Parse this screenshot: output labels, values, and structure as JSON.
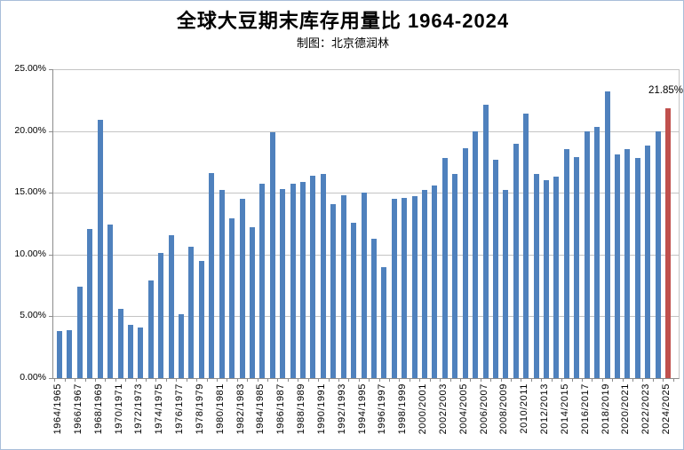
{
  "title": "全球大豆期末库存用量比 1964-2024",
  "subtitle": "制图：北京德润林",
  "chart_data": {
    "type": "bar",
    "title": "全球大豆期末库存用量比 1964-2024",
    "subtitle": "制图：北京德润林",
    "xlabel": "",
    "ylabel": "",
    "ylim": [
      0,
      25
    ],
    "ytick_step": 5,
    "ytick_labels": [
      "0.00%",
      "5.00%",
      "10.00%",
      "15.00%",
      "20.00%",
      "25.00%"
    ],
    "xtick_label_every": 2,
    "grid": true,
    "legend_position": "none",
    "bar_color": "#4f81bd",
    "highlight_color": "#c0504d",
    "highlight_index": 60,
    "annotation": {
      "text": "21.85%",
      "index": 60
    },
    "categories": [
      "1964/1965",
      "1965/1966",
      "1966/1967",
      "1967/1968",
      "1968/1969",
      "1969/1970",
      "1970/1971",
      "1971/1972",
      "1972/1973",
      "1973/1974",
      "1974/1975",
      "1975/1976",
      "1976/1977",
      "1977/1978",
      "1978/1979",
      "1979/1980",
      "1980/1981",
      "1981/1982",
      "1982/1983",
      "1983/1984",
      "1984/1985",
      "1985/1986",
      "1986/1987",
      "1987/1988",
      "1988/1989",
      "1989/1990",
      "1990/1991",
      "1991/1992",
      "1992/1993",
      "1993/1994",
      "1994/1995",
      "1995/1996",
      "1996/1997",
      "1997/1998",
      "1998/1999",
      "1999/2000",
      "2000/2001",
      "2001/2002",
      "2002/2003",
      "2003/2004",
      "2004/2005",
      "2005/2006",
      "2006/2007",
      "2007/2008",
      "2008/2009",
      "2009/2010",
      "2010/2011",
      "2011/2012",
      "2012/2013",
      "2013/2014",
      "2014/2015",
      "2015/2016",
      "2016/2017",
      "2017/2018",
      "2018/2019",
      "2019/2020",
      "2020/2021",
      "2021/2022",
      "2022/2023",
      "2023/2024",
      "2024/2025"
    ],
    "values": [
      3.8,
      3.9,
      7.4,
      12.1,
      20.9,
      12.4,
      5.6,
      4.3,
      4.1,
      7.9,
      10.1,
      11.6,
      5.2,
      10.6,
      9.5,
      16.6,
      15.2,
      12.9,
      14.5,
      12.2,
      15.7,
      19.9,
      15.3,
      15.7,
      15.9,
      16.4,
      16.5,
      14.1,
      14.8,
      12.6,
      15.0,
      11.3,
      9.0,
      14.5,
      14.6,
      14.7,
      15.2,
      15.6,
      17.8,
      16.5,
      18.6,
      20.0,
      22.1,
      17.7,
      15.2,
      19.0,
      21.4,
      16.5,
      16.0,
      16.3,
      18.5,
      17.9,
      20.0,
      20.3,
      23.2,
      18.1,
      18.5,
      17.8,
      18.8,
      20.0,
      21.85
    ]
  }
}
